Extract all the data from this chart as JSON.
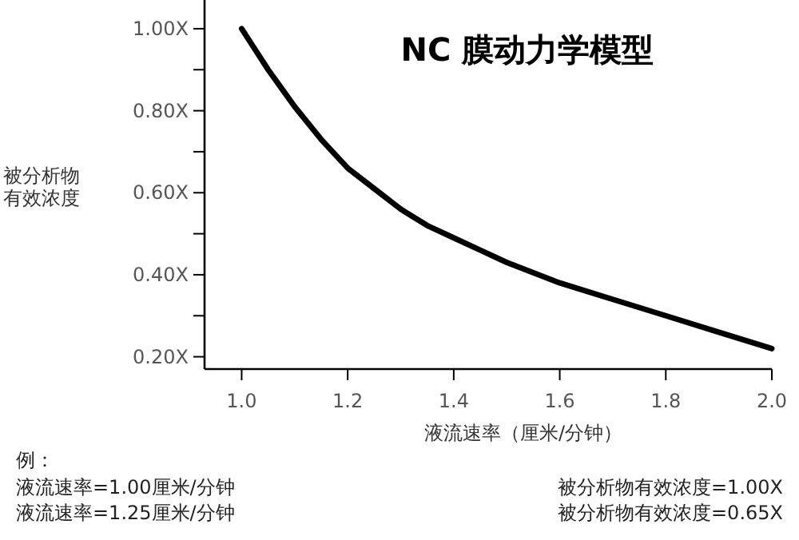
{
  "chart_data": {
    "type": "line",
    "title": "NC 膜动力学模型",
    "xlabel": "液流速率（厘米/分钟）",
    "ylabel": "被分析物有效浓度",
    "x": [
      1.0,
      1.025,
      1.05,
      1.075,
      1.1,
      1.15,
      1.2,
      1.25,
      1.3,
      1.35,
      1.4,
      1.45,
      1.5,
      1.6,
      1.7,
      1.8,
      1.9,
      2.0
    ],
    "series": [
      {
        "color": "#000000",
        "values": [
          1.0,
          0.95,
          0.9,
          0.855,
          0.81,
          0.73,
          0.66,
          0.61,
          0.56,
          0.52,
          0.49,
          0.46,
          0.43,
          0.38,
          0.34,
          0.3,
          0.26,
          0.22
        ]
      }
    ],
    "xlim": [
      0.93,
      2.0
    ],
    "ylim": [
      0.17,
      1.07
    ],
    "xticks": [
      {
        "value": 1.0,
        "label": "1.0"
      },
      {
        "value": 1.2,
        "label": "1.2"
      },
      {
        "value": 1.4,
        "label": "1.4"
      },
      {
        "value": 1.6,
        "label": "1.6"
      },
      {
        "value": 1.8,
        "label": "1.8"
      },
      {
        "value": 2.0,
        "label": "2.0"
      }
    ],
    "yticks": [
      {
        "value": 0.2,
        "label": "0.20X"
      },
      {
        "value": 0.3,
        "label": null
      },
      {
        "value": 0.4,
        "label": "0.40X"
      },
      {
        "value": 0.5,
        "label": null
      },
      {
        "value": 0.6,
        "label": "0.60X"
      },
      {
        "value": 0.7,
        "label": null
      },
      {
        "value": 0.8,
        "label": "0.80X"
      },
      {
        "value": 0.9,
        "label": null
      },
      {
        "value": 1.0,
        "label": "1.00X"
      }
    ],
    "marker": "none",
    "line_style": "solid",
    "annotations": [
      "例：",
      "液流速率=1.00厘米/分钟",
      "液流速率=1.25厘米/分钟",
      "被分析物有效浓度=1.00X",
      "被分析物有效浓度=0.65X"
    ]
  }
}
